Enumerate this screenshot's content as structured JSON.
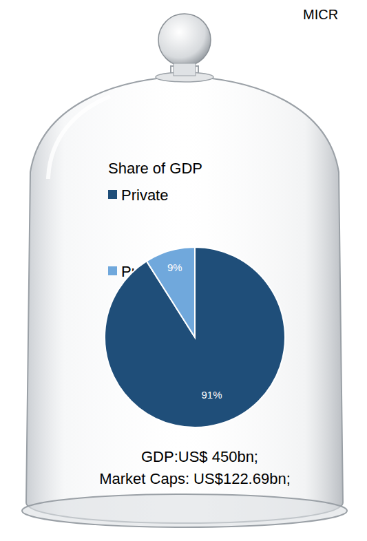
{
  "chart_data": {
    "type": "pie",
    "title": "Share of GDP",
    "categories": [
      "Private",
      "Public"
    ],
    "values": [
      91,
      9
    ],
    "value_labels": [
      "91%",
      "9%"
    ],
    "colors": [
      "#1f4e79",
      "#70a8dc"
    ],
    "data_labels": true,
    "legend": "upper left",
    "annotations": [
      "MICR",
      "GDP:US$ 450bn;",
      "Market Caps: US$122.69bn;"
    ]
  }
}
